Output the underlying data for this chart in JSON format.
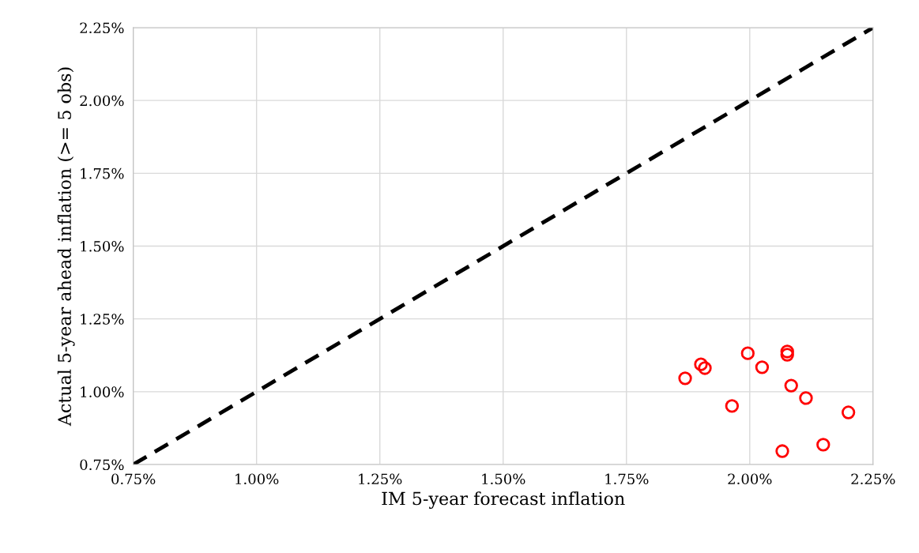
{
  "chart_data": {
    "type": "scatter",
    "xlabel": "IM 5-year forecast inflation",
    "ylabel": "Actual 5-year ahead inflation (>= 5 obs)",
    "xlim": [
      0.75,
      2.25
    ],
    "ylim": [
      0.75,
      2.25
    ],
    "xticks": [
      {
        "value": 0.75,
        "label": "0.75%"
      },
      {
        "value": 1.0,
        "label": "1.00%"
      },
      {
        "value": 1.25,
        "label": "1.25%"
      },
      {
        "value": 1.5,
        "label": "1.50%"
      },
      {
        "value": 1.75,
        "label": "1.75%"
      },
      {
        "value": 2.0,
        "label": "2.00%"
      },
      {
        "value": 2.25,
        "label": "2.25%"
      }
    ],
    "yticks": [
      {
        "value": 0.75,
        "label": "0.75%"
      },
      {
        "value": 1.0,
        "label": "1.00%"
      },
      {
        "value": 1.25,
        "label": "1.25%"
      },
      {
        "value": 1.5,
        "label": "1.50%"
      },
      {
        "value": 1.75,
        "label": "1.75%"
      },
      {
        "value": 2.0,
        "label": "2.00%"
      },
      {
        "value": 2.25,
        "label": "2.25%"
      }
    ],
    "grid": true,
    "series": [
      {
        "type": "line",
        "color": "#000000",
        "line_style": "dashed",
        "marker": "none",
        "x": [
          0.75,
          2.25
        ],
        "values": [
          0.75,
          2.25
        ]
      },
      {
        "color": "#ff0000",
        "marker": "circle",
        "x": [
          1.869,
          1.901,
          1.909,
          1.964,
          1.996,
          2.025,
          2.066,
          2.076,
          2.076,
          2.084,
          2.114,
          2.149,
          2.2
        ],
        "values": [
          1.046,
          1.094,
          1.081,
          0.951,
          1.132,
          1.084,
          0.796,
          1.138,
          1.127,
          1.021,
          0.978,
          0.818,
          0.929
        ]
      }
    ]
  }
}
